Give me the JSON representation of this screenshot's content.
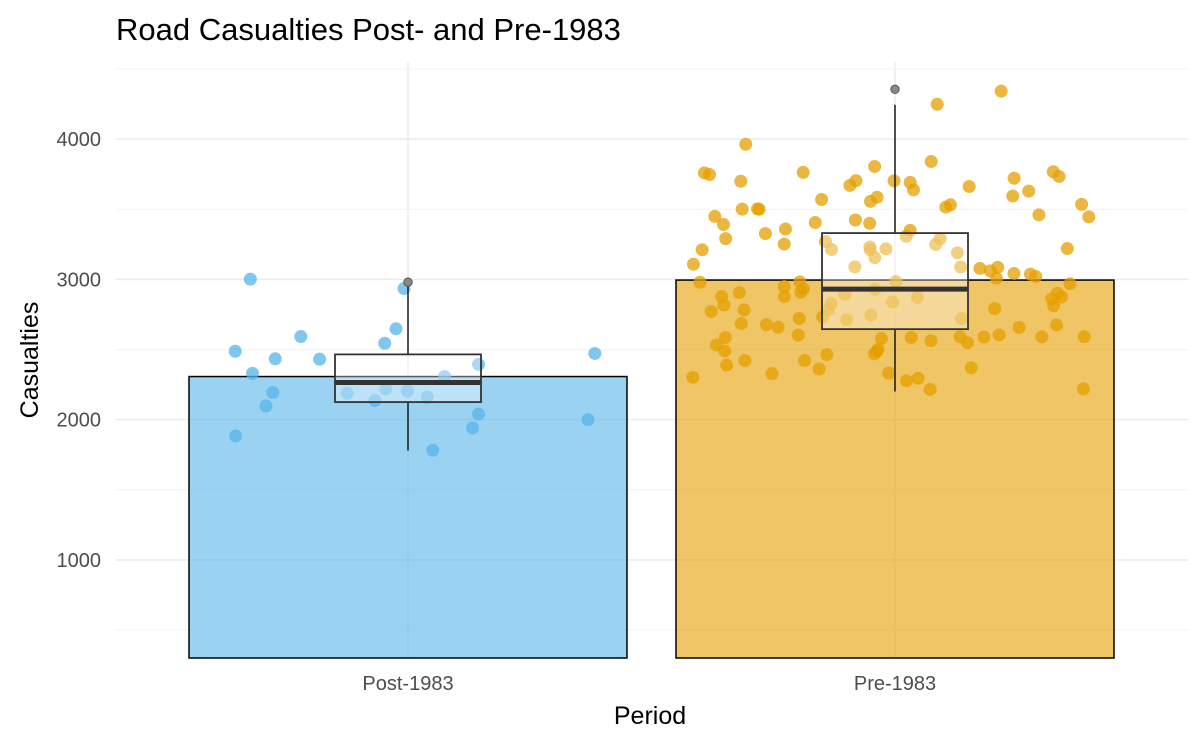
{
  "chart_data": {
    "type": "bar",
    "title": "Road Casualties Post- and Pre-1983",
    "xlabel": "Period",
    "ylabel": "Casualties",
    "categories": [
      "Post-1983",
      "Pre-1983"
    ],
    "values": [
      2307,
      2995
    ],
    "ylim": [
      300,
      4550
    ],
    "yticks": [
      1000,
      2000,
      3000,
      4000
    ],
    "grid": true,
    "colors": {
      "Post-1983": "#56B4E9",
      "Pre-1983": "#E69F00"
    },
    "boxplots": [
      {
        "category": "Post-1983",
        "q1": 2125,
        "median": 2265,
        "q3": 2465,
        "whisker_low": 1780,
        "whisker_high": 2975,
        "outliers": [
          2980
        ]
      },
      {
        "category": "Pre-1983",
        "q1": 2645,
        "median": 2930,
        "q3": 3330,
        "whisker_low": 2200,
        "whisker_high": 4245,
        "outliers": [
          4355
        ]
      }
    ],
    "points": [
      {
        "category": "Post-1983",
        "values": [
          2940,
          2980,
          2545,
          2520,
          2300,
          2455,
          1905,
          2180,
          2010,
          1780,
          2395,
          2040,
          2325,
          2445,
          2140,
          2375,
          2235,
          2195,
          2145,
          2120,
          2175,
          1920,
          2625,
          2625
        ]
      },
      {
        "category": "Pre-1983",
        "values": [
          4240,
          4355,
          3940,
          3770,
          3740,
          3675,
          3520,
          3400,
          3260,
          3150,
          2580,
          2760,
          2930,
          2630,
          3000,
          3020,
          2830,
          2720,
          2650,
          2390,
          2760,
          2290,
          2210,
          2430,
          2520,
          2560,
          2710,
          2880,
          2950,
          3095,
          3120,
          3280,
          3460,
          3350,
          3720,
          2990,
          2800,
          2420,
          2520,
          2860,
          3690,
          3460,
          3480,
          3390,
          3210,
          3130,
          2950,
          2820,
          2600,
          2970,
          2910,
          2780,
          2660,
          3220,
          3200,
          2620,
          2270,
          2940,
          2720,
          2890,
          2540,
          3760,
          3720,
          3630,
          3680,
          3560,
          3520,
          3450,
          3180,
          3110,
          2980,
          2880,
          2760,
          2620,
          2560,
          2520,
          2330,
          2320,
          2220,
          3750,
          3340,
          3380,
          3440,
          3240,
          3010,
          2820,
          2680,
          2460,
          2310,
          3090,
          3230,
          3470,
          3590,
          3700,
          3680,
          3630,
          3520,
          3420,
          3330,
          3190,
          3060,
          2960,
          2850,
          2750,
          2650,
          2560,
          2440,
          3880,
          3750,
          3540,
          3230,
          3060,
          2940,
          2800,
          2600,
          2450,
          2300,
          3690,
          3650,
          3310,
          3280,
          3260,
          2930,
          2640,
          2500,
          2710
        ]
      }
    ]
  }
}
